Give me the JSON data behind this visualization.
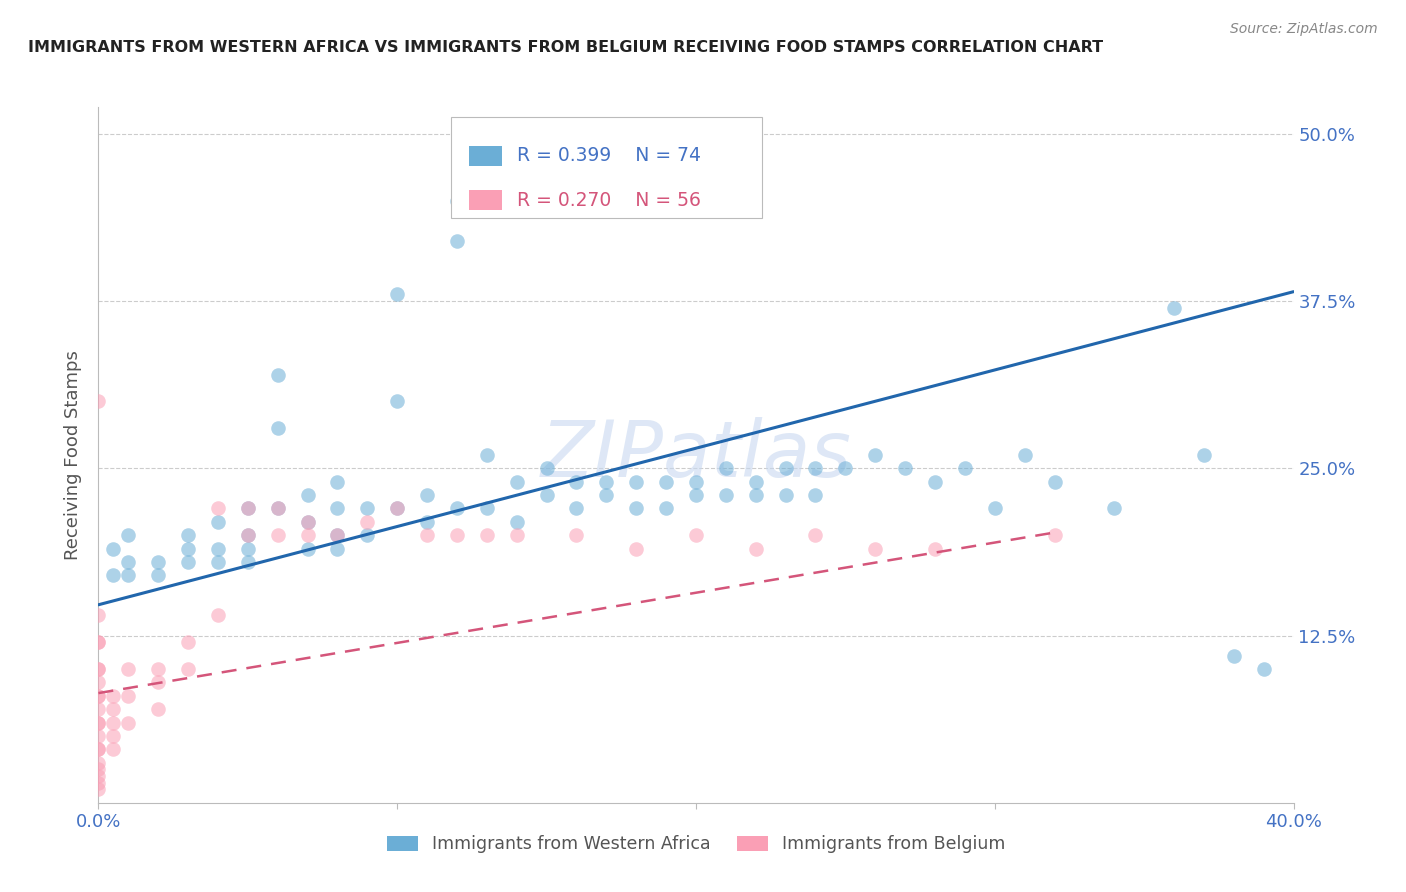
{
  "title": "IMMIGRANTS FROM WESTERN AFRICA VS IMMIGRANTS FROM BELGIUM RECEIVING FOOD STAMPS CORRELATION CHART",
  "source": "Source: ZipAtlas.com",
  "ylabel": "Receiving Food Stamps",
  "ytick_labels": [
    "50.0%",
    "37.5%",
    "25.0%",
    "12.5%"
  ],
  "ytick_values": [
    0.5,
    0.375,
    0.25,
    0.125
  ],
  "xlim": [
    0.0,
    0.4
  ],
  "ylim": [
    0.0,
    0.52
  ],
  "legend_blue_r": "R = 0.399",
  "legend_blue_n": "N = 74",
  "legend_pink_r": "R = 0.270",
  "legend_pink_n": "N = 56",
  "legend_label_blue": "Immigrants from Western Africa",
  "legend_label_pink": "Immigrants from Belgium",
  "blue_color": "#6baed6",
  "pink_color": "#fa9fb5",
  "line_blue_color": "#2166ac",
  "line_pink_color": "#d4557a",
  "tick_color": "#4472c4",
  "title_color": "#222222",
  "source_color": "#888888",
  "watermark_color": "#c8d8f0",
  "watermark_text": "ZIPatlas",
  "blue_line_x": [
    0.0,
    0.4
  ],
  "blue_line_y": [
    0.148,
    0.382
  ],
  "pink_line_x": [
    0.0,
    0.32
  ],
  "pink_line_y": [
    0.082,
    0.202
  ],
  "blue_scatter_x": [
    0.005,
    0.005,
    0.01,
    0.01,
    0.01,
    0.02,
    0.02,
    0.03,
    0.03,
    0.03,
    0.04,
    0.04,
    0.04,
    0.05,
    0.05,
    0.05,
    0.05,
    0.06,
    0.06,
    0.06,
    0.07,
    0.07,
    0.07,
    0.08,
    0.08,
    0.08,
    0.08,
    0.09,
    0.09,
    0.1,
    0.1,
    0.1,
    0.11,
    0.11,
    0.12,
    0.12,
    0.12,
    0.13,
    0.13,
    0.14,
    0.14,
    0.15,
    0.15,
    0.16,
    0.16,
    0.17,
    0.17,
    0.18,
    0.18,
    0.19,
    0.19,
    0.2,
    0.2,
    0.21,
    0.21,
    0.22,
    0.22,
    0.23,
    0.23,
    0.24,
    0.24,
    0.25,
    0.26,
    0.27,
    0.28,
    0.29,
    0.3,
    0.31,
    0.32,
    0.34,
    0.36,
    0.37,
    0.38,
    0.39
  ],
  "blue_scatter_y": [
    0.19,
    0.17,
    0.18,
    0.2,
    0.17,
    0.18,
    0.17,
    0.19,
    0.2,
    0.18,
    0.21,
    0.19,
    0.18,
    0.22,
    0.2,
    0.19,
    0.18,
    0.32,
    0.28,
    0.22,
    0.23,
    0.21,
    0.19,
    0.24,
    0.22,
    0.2,
    0.19,
    0.22,
    0.2,
    0.38,
    0.3,
    0.22,
    0.23,
    0.21,
    0.45,
    0.42,
    0.22,
    0.26,
    0.22,
    0.24,
    0.21,
    0.25,
    0.23,
    0.24,
    0.22,
    0.24,
    0.23,
    0.24,
    0.22,
    0.24,
    0.22,
    0.24,
    0.23,
    0.25,
    0.23,
    0.24,
    0.23,
    0.25,
    0.23,
    0.25,
    0.23,
    0.25,
    0.26,
    0.25,
    0.24,
    0.25,
    0.22,
    0.26,
    0.24,
    0.22,
    0.37,
    0.26,
    0.11,
    0.1
  ],
  "pink_scatter_x": [
    0.0,
    0.0,
    0.0,
    0.0,
    0.0,
    0.0,
    0.0,
    0.0,
    0.0,
    0.0,
    0.0,
    0.0,
    0.0,
    0.0,
    0.0,
    0.0,
    0.0,
    0.0,
    0.0,
    0.0,
    0.005,
    0.005,
    0.005,
    0.005,
    0.005,
    0.01,
    0.01,
    0.01,
    0.02,
    0.02,
    0.02,
    0.03,
    0.03,
    0.04,
    0.04,
    0.05,
    0.05,
    0.06,
    0.06,
    0.07,
    0.07,
    0.08,
    0.09,
    0.1,
    0.11,
    0.12,
    0.13,
    0.14,
    0.16,
    0.18,
    0.2,
    0.22,
    0.24,
    0.26,
    0.28,
    0.32
  ],
  "pink_scatter_y": [
    0.3,
    0.14,
    0.12,
    0.1,
    0.09,
    0.08,
    0.07,
    0.06,
    0.05,
    0.04,
    0.03,
    0.025,
    0.02,
    0.015,
    0.01,
    0.04,
    0.06,
    0.08,
    0.1,
    0.12,
    0.08,
    0.07,
    0.06,
    0.05,
    0.04,
    0.1,
    0.08,
    0.06,
    0.1,
    0.09,
    0.07,
    0.12,
    0.1,
    0.22,
    0.14,
    0.22,
    0.2,
    0.22,
    0.2,
    0.21,
    0.2,
    0.2,
    0.21,
    0.22,
    0.2,
    0.2,
    0.2,
    0.2,
    0.2,
    0.19,
    0.2,
    0.19,
    0.2,
    0.19,
    0.19,
    0.2
  ]
}
